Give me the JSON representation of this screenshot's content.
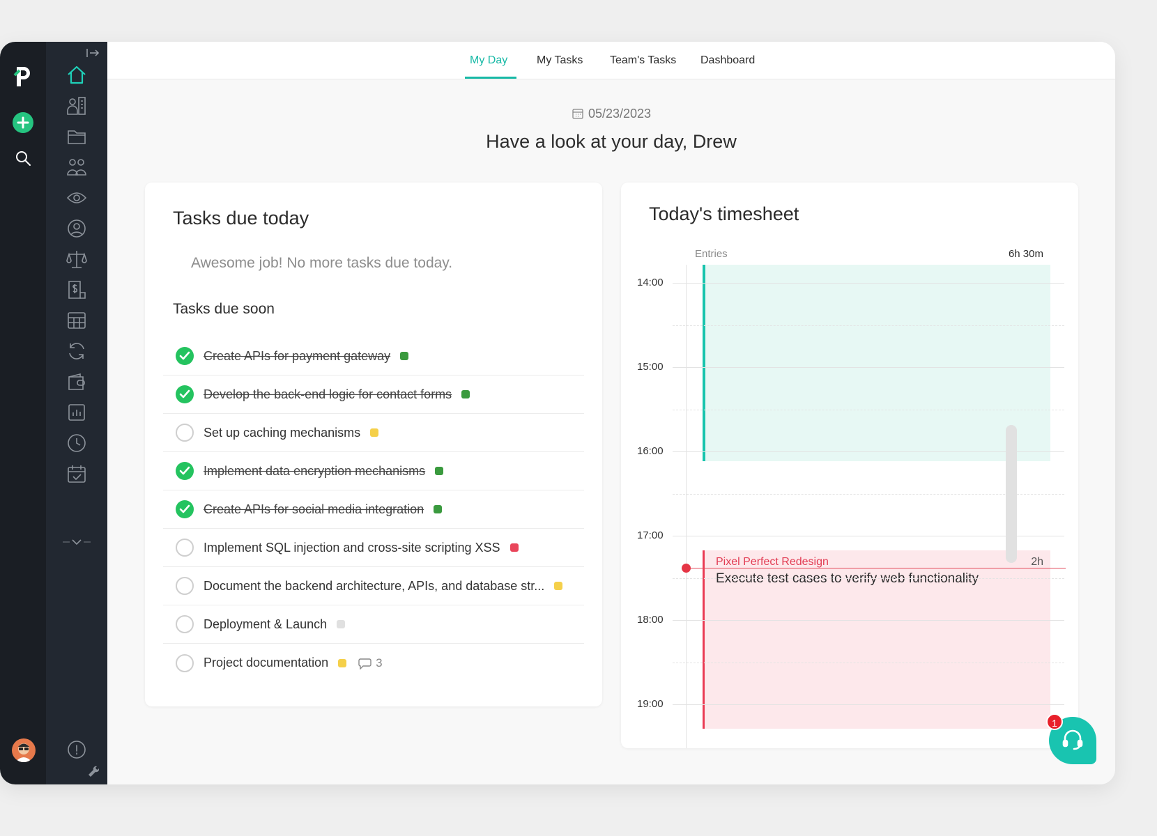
{
  "nav": {
    "tabs": [
      {
        "label": "My Day"
      },
      {
        "label": "My Tasks"
      },
      {
        "label": "Team's Tasks"
      },
      {
        "label": "Dashboard"
      }
    ],
    "active_tab": "My Day"
  },
  "header": {
    "date": "05/23/2023",
    "greeting": "Have a look at your day, Drew"
  },
  "tasks_card": {
    "title": "Tasks due today",
    "no_tasks_message": "Awesome job! No more tasks due today.",
    "soon_title": "Tasks due soon",
    "tasks": [
      {
        "name": "Create APIs for payment gateway",
        "done": true,
        "color": "#3a9a3e"
      },
      {
        "name": "Develop the back-end logic for contact forms",
        "done": true,
        "color": "#3a9a3e"
      },
      {
        "name": "Set up caching mechanisms",
        "done": false,
        "color": "#f5d04a"
      },
      {
        "name": "Implement data encryption mechanisms",
        "done": true,
        "color": "#3a9a3e"
      },
      {
        "name": "Create APIs for social media integration",
        "done": true,
        "color": "#3a9a3e"
      },
      {
        "name": "Implement SQL injection and cross-site scripting XSS",
        "done": false,
        "color": "#e9455a"
      },
      {
        "name": "Document the backend architecture, APIs, and database str...",
        "done": false,
        "color": "#f5d04a"
      },
      {
        "name": "Deployment & Launch",
        "done": false,
        "color": "#e0e0e0"
      },
      {
        "name": "Project documentation",
        "done": false,
        "color": "#f5d04a",
        "comments": "3"
      }
    ]
  },
  "timesheet": {
    "title": "Today's timesheet",
    "entries_label": "Entries",
    "total": "6h 30m",
    "hours": [
      "14:00",
      "15:00",
      "16:00",
      "17:00",
      "18:00",
      "19:00"
    ],
    "entries": [
      {
        "project": "",
        "description": "",
        "duration": "",
        "color": "#18c4ad"
      },
      {
        "project": "Pixel Perfect Redesign",
        "description": "Execute test cases to verify web functionality",
        "duration": "2h",
        "color": "#ea3b54"
      }
    ]
  },
  "support": {
    "badge": "1"
  },
  "colors": {
    "accent": "#17b9a6",
    "rail": "#1a1e24",
    "sidebar": "#222831",
    "add": "#25c480"
  }
}
